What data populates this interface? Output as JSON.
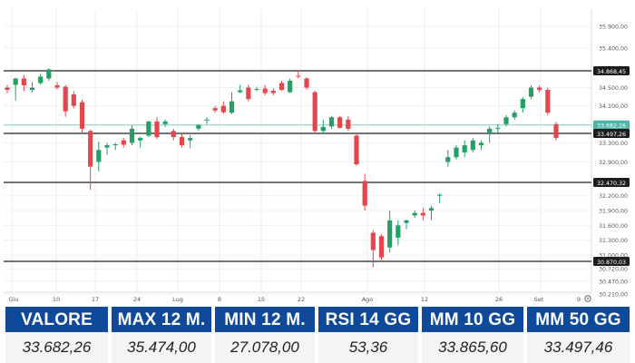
{
  "chart_data": {
    "type": "candlestick",
    "y_ticks": [
      "35.900,00",
      "35.400,00",
      "34.500,00",
      "34.100,00",
      "33.300,00",
      "32.900,00",
      "32.200,00",
      "31.900,00",
      "31.600,00",
      "31.300,00",
      "31.000,00",
      "30.720,00",
      "30.470,00",
      "30.210,00"
    ],
    "x_ticks": [
      "Giu",
      "10",
      "17",
      "24",
      "Lug",
      "8",
      "15",
      "22",
      "Ago",
      "12",
      "26",
      "Set",
      "9"
    ],
    "levels": [
      {
        "label": "34.868,45",
        "value": 34868.45,
        "style": "solid"
      },
      {
        "label": "33.682,26",
        "value": 33682.26,
        "style": "current"
      },
      {
        "label": "33.497,26",
        "value": 33497.26,
        "style": "solid"
      },
      {
        "label": "32.470,32",
        "value": 32470.32,
        "style": "solid"
      },
      {
        "label": "30.870,03",
        "value": 30870.03,
        "style": "solid"
      }
    ],
    "candles": [
      {
        "o": 34500,
        "h": 34560,
        "l": 34380,
        "c": 34450
      },
      {
        "o": 34560,
        "h": 34720,
        "l": 34220,
        "c": 34700
      },
      {
        "o": 34700,
        "h": 34780,
        "l": 34420,
        "c": 34550
      },
      {
        "o": 34450,
        "h": 34620,
        "l": 34400,
        "c": 34500
      },
      {
        "o": 34600,
        "h": 34800,
        "l": 34560,
        "c": 34740
      },
      {
        "o": 34700,
        "h": 34920,
        "l": 34650,
        "c": 34900
      },
      {
        "o": 34550,
        "h": 34620,
        "l": 34460,
        "c": 34500
      },
      {
        "o": 34520,
        "h": 34560,
        "l": 33860,
        "c": 33980
      },
      {
        "o": 34350,
        "h": 34420,
        "l": 34050,
        "c": 34100
      },
      {
        "o": 34180,
        "h": 34230,
        "l": 33520,
        "c": 33600
      },
      {
        "o": 33550,
        "h": 33580,
        "l": 32320,
        "c": 32800
      },
      {
        "o": 32900,
        "h": 33320,
        "l": 32700,
        "c": 33150
      },
      {
        "o": 33200,
        "h": 33300,
        "l": 33050,
        "c": 33250
      },
      {
        "o": 33250,
        "h": 33300,
        "l": 33150,
        "c": 33270
      },
      {
        "o": 33350,
        "h": 33400,
        "l": 33200,
        "c": 33260
      },
      {
        "o": 33300,
        "h": 33680,
        "l": 33250,
        "c": 33600
      },
      {
        "o": 33350,
        "h": 33430,
        "l": 33200,
        "c": 33400
      },
      {
        "o": 33450,
        "h": 33770,
        "l": 33420,
        "c": 33760
      },
      {
        "o": 33760,
        "h": 33850,
        "l": 33380,
        "c": 33420
      },
      {
        "o": 33700,
        "h": 33800,
        "l": 33640,
        "c": 33760
      },
      {
        "o": 33550,
        "h": 33600,
        "l": 33350,
        "c": 33420
      },
      {
        "o": 33420,
        "h": 33480,
        "l": 33200,
        "c": 33250
      },
      {
        "o": 33350,
        "h": 33460,
        "l": 33190,
        "c": 33400
      },
      {
        "o": 33600,
        "h": 33700,
        "l": 33550,
        "c": 33680
      },
      {
        "o": 33780,
        "h": 33850,
        "l": 33700,
        "c": 33800
      },
      {
        "o": 34050,
        "h": 34100,
        "l": 33950,
        "c": 34000
      },
      {
        "o": 34100,
        "h": 34200,
        "l": 33930,
        "c": 33960
      },
      {
        "o": 33950,
        "h": 34400,
        "l": 33920,
        "c": 34200
      },
      {
        "o": 34400,
        "h": 34560,
        "l": 34380,
        "c": 34440
      },
      {
        "o": 34500,
        "h": 34560,
        "l": 34200,
        "c": 34250
      },
      {
        "o": 34450,
        "h": 34520,
        "l": 34420,
        "c": 34470
      },
      {
        "o": 34480,
        "h": 34560,
        "l": 34330,
        "c": 34380
      },
      {
        "o": 34430,
        "h": 34490,
        "l": 34330,
        "c": 34380
      },
      {
        "o": 34600,
        "h": 34650,
        "l": 34430,
        "c": 34450
      },
      {
        "o": 34400,
        "h": 34700,
        "l": 34380,
        "c": 34650
      },
      {
        "o": 34760,
        "h": 34880,
        "l": 34700,
        "c": 34750
      },
      {
        "o": 34700,
        "h": 34730,
        "l": 34450,
        "c": 34500
      },
      {
        "o": 34400,
        "h": 34430,
        "l": 33490,
        "c": 33550
      },
      {
        "o": 33550,
        "h": 33800,
        "l": 33500,
        "c": 33640
      },
      {
        "o": 33650,
        "h": 33880,
        "l": 33600,
        "c": 33850
      },
      {
        "o": 33850,
        "h": 33880,
        "l": 33600,
        "c": 33620
      },
      {
        "o": 33800,
        "h": 33880,
        "l": 33550,
        "c": 33600
      },
      {
        "o": 33450,
        "h": 33480,
        "l": 32820,
        "c": 32850
      },
      {
        "o": 32500,
        "h": 32650,
        "l": 31900,
        "c": 32000
      },
      {
        "o": 31450,
        "h": 31500,
        "l": 30750,
        "c": 31100
      },
      {
        "o": 31380,
        "h": 31420,
        "l": 30900,
        "c": 30950
      },
      {
        "o": 31150,
        "h": 31900,
        "l": 31050,
        "c": 31700
      },
      {
        "o": 31350,
        "h": 31700,
        "l": 31200,
        "c": 31600
      },
      {
        "o": 31650,
        "h": 31720,
        "l": 31520,
        "c": 31700
      },
      {
        "o": 31800,
        "h": 31900,
        "l": 31750,
        "c": 31850
      },
      {
        "o": 31850,
        "h": 31950,
        "l": 31700,
        "c": 31800
      },
      {
        "o": 31900,
        "h": 32000,
        "l": 31700,
        "c": 31950
      },
      {
        "o": 32200,
        "h": 32250,
        "l": 32050,
        "c": 32220
      },
      {
        "o": 32900,
        "h": 33150,
        "l": 32800,
        "c": 33000
      },
      {
        "o": 33000,
        "h": 33250,
        "l": 32950,
        "c": 33200
      },
      {
        "o": 33100,
        "h": 33350,
        "l": 33000,
        "c": 33250
      },
      {
        "o": 33150,
        "h": 33400,
        "l": 33100,
        "c": 33350
      },
      {
        "o": 33250,
        "h": 33350,
        "l": 33150,
        "c": 33300
      },
      {
        "o": 33500,
        "h": 33650,
        "l": 33300,
        "c": 33600
      },
      {
        "o": 33600,
        "h": 33700,
        "l": 33500,
        "c": 33620
      },
      {
        "o": 33700,
        "h": 33900,
        "l": 33650,
        "c": 33850
      },
      {
        "o": 33850,
        "h": 34000,
        "l": 33800,
        "c": 33950
      },
      {
        "o": 34050,
        "h": 34300,
        "l": 33950,
        "c": 34250
      },
      {
        "o": 34300,
        "h": 34550,
        "l": 34250,
        "c": 34500
      },
      {
        "o": 34500,
        "h": 34550,
        "l": 34400,
        "c": 34450
      },
      {
        "o": 34450,
        "h": 34500,
        "l": 33900,
        "c": 33950
      },
      {
        "o": 33700,
        "h": 33750,
        "l": 33350,
        "c": 33400
      }
    ],
    "colors": {
      "up": "#23a064",
      "down": "#e2474e",
      "level": "#222222",
      "current": "#7fd0c5"
    }
  },
  "stats": [
    {
      "label": "VALORE",
      "value": "33.682,26"
    },
    {
      "label": "MAX 12 M.",
      "value": "35.474,00"
    },
    {
      "label": "MIN 12 M.",
      "value": "27.078,00"
    },
    {
      "label": "RSI 14 GG",
      "value": "53,36"
    },
    {
      "label": "MM 10 GG",
      "value": "33.865,60"
    },
    {
      "label": "MM 50 GG",
      "value": "33.497,46"
    }
  ]
}
